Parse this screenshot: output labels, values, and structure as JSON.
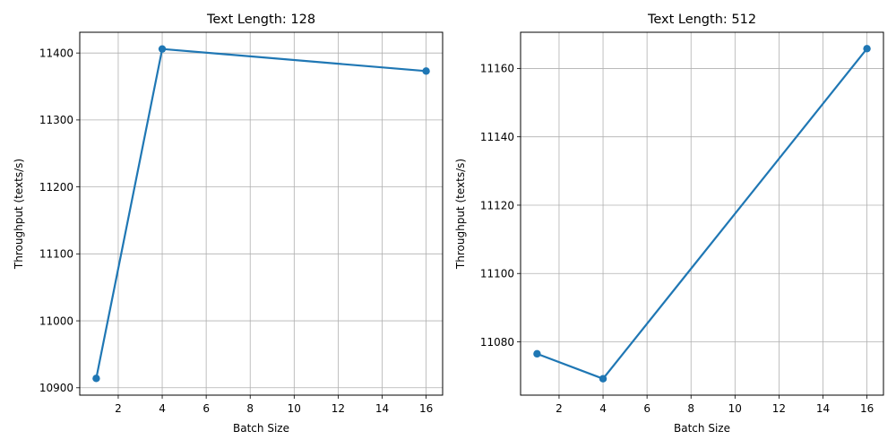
{
  "chart_data": [
    {
      "type": "line",
      "title": "Text Length: 128",
      "xlabel": "Batch Size",
      "ylabel": "Throughput (texts/s)",
      "x": [
        1,
        4,
        16
      ],
      "series": [
        {
          "values": [
            10914,
            11406,
            11373
          ],
          "color": "#1f77b4",
          "marker": "circle"
        }
      ],
      "xlim": [
        0.25,
        16.75
      ],
      "ylim": [
        10889,
        11431
      ],
      "xticks": [
        2,
        4,
        6,
        8,
        10,
        12,
        14,
        16
      ],
      "yticks": [
        10900,
        11000,
        11100,
        11200,
        11300,
        11400
      ],
      "grid": true
    },
    {
      "type": "line",
      "title": "Text Length: 512",
      "xlabel": "Batch Size",
      "ylabel": "Throughput (texts/s)",
      "x": [
        1,
        4,
        16
      ],
      "series": [
        {
          "values": [
            11076.5,
            11069.2,
            11165.8
          ],
          "color": "#1f77b4",
          "marker": "circle"
        }
      ],
      "xlim": [
        0.25,
        16.75
      ],
      "ylim": [
        11064.4,
        11170.6
      ],
      "xticks": [
        2,
        4,
        6,
        8,
        10,
        12,
        14,
        16
      ],
      "yticks": [
        11080,
        11100,
        11120,
        11140,
        11160
      ],
      "grid": true
    }
  ]
}
